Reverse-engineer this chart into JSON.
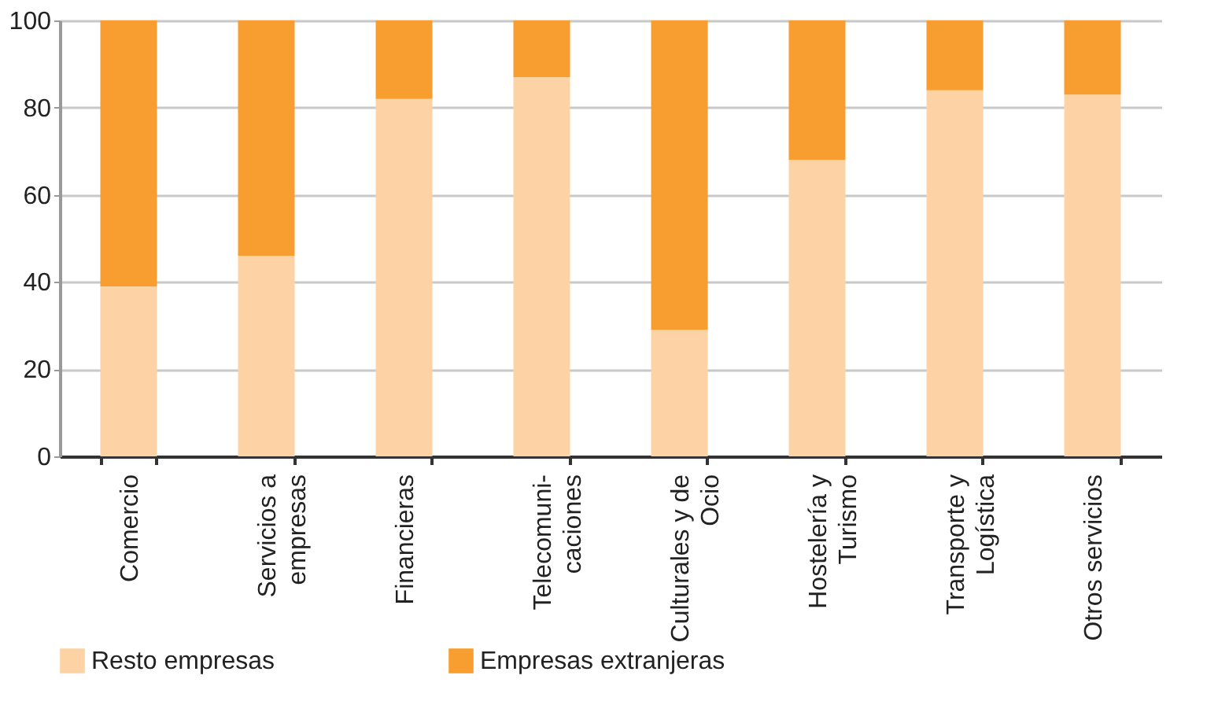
{
  "chart_data": {
    "type": "bar",
    "stacked": true,
    "categories": [
      "Comercio",
      "Servicios a\nempresas",
      "Financieras",
      "Telecomuni-\ncaciones",
      "Culturales y de\nOcio",
      "Hostelería y\nTurismo",
      "Transporte y\nLogística",
      "Otros servicios"
    ],
    "series": [
      {
        "name": "Resto empresas",
        "color": "#fdd3a5",
        "values": [
          39,
          46,
          82,
          87,
          29,
          68,
          84,
          83
        ]
      },
      {
        "name": "Empresas extranjeras",
        "color": "#f89e31",
        "values": [
          61,
          54,
          18,
          13,
          71,
          32,
          16,
          17
        ]
      }
    ],
    "ylim": [
      0,
      100
    ],
    "yticks": [
      0,
      20,
      40,
      60,
      80,
      100
    ],
    "grid": "y",
    "legend": "bottom"
  }
}
